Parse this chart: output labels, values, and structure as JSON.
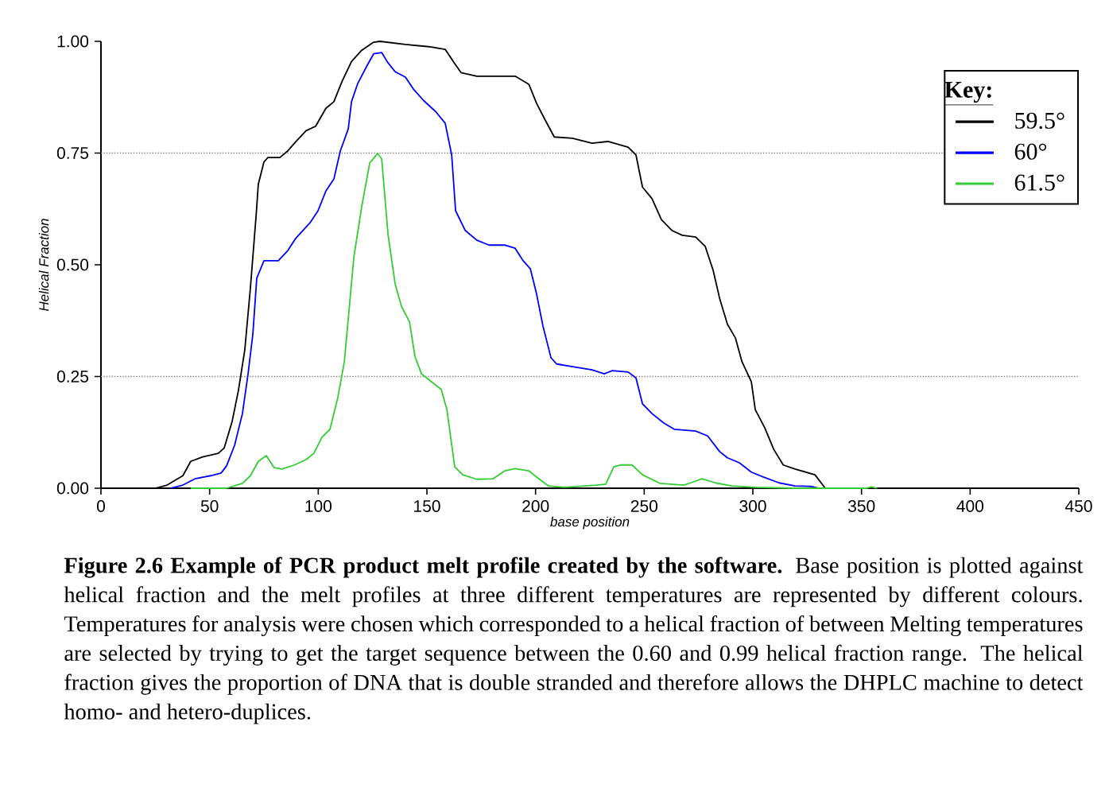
{
  "chart_data": {
    "type": "line",
    "xlabel": "base position",
    "ylabel": "Helical Fraction",
    "legend_title": "Key:",
    "xlim": [
      0,
      450
    ],
    "xticks": [
      0,
      50,
      100,
      150,
      200,
      250,
      300,
      350,
      400,
      450
    ],
    "ylim": [
      0,
      1
    ],
    "yticks": [
      {
        "value": 0,
        "label": "0.00"
      },
      {
        "value": 0.25,
        "label": "0.25"
      },
      {
        "value": 0.5,
        "label": "0.50"
      },
      {
        "value": 0.75,
        "label": "0.75"
      },
      {
        "value": 1,
        "label": "1.00"
      }
    ],
    "grid": false,
    "legend": "top right",
    "marker": "none",
    "line_style": "solid",
    "ref_lines": [
      {
        "axis": "y",
        "value": 0.25,
        "color": "#808080",
        "line_style": "dotted"
      },
      {
        "axis": "y",
        "value": 0.75,
        "color": "#808080",
        "line_style": "dotted"
      }
    ],
    "series": [
      {
        "name": "59.5°",
        "color": "#000000",
        "x": [
          25,
          30.4,
          37.7,
          41.3,
          46.8,
          54,
          56.7,
          60.4,
          63.3,
          66.2,
          68.8,
          71.4,
          72.4,
          75,
          76.8,
          82.3,
          86,
          89.6,
          94.4,
          98.8,
          103.5,
          107.2,
          110.9,
          115.3,
          120,
          125.5,
          128.4,
          140,
          151,
          158.4,
          162.8,
          165.7,
          173,
          190.6,
          196.9,
          200.5,
          204.2,
          208.6,
          217,
          226,
          233.4,
          242.6,
          246.2,
          249.2,
          253.6,
          257.9,
          262.7,
          267.5,
          273.7,
          278.1,
          281.7,
          284.7,
          288.3,
          292,
          295,
          299.3,
          301.1,
          305.5,
          309.6,
          314,
          319.4,
          328.6,
          333.3
        ],
        "values": [
          0,
          0.007,
          0.028,
          0.06,
          0.07,
          0.078,
          0.09,
          0.15,
          0.22,
          0.31,
          0.45,
          0.61,
          0.68,
          0.73,
          0.74,
          0.74,
          0.755,
          0.775,
          0.8,
          0.81,
          0.85,
          0.865,
          0.91,
          0.955,
          0.98,
          0.998,
          1.0,
          0.993,
          0.988,
          0.982,
          0.95,
          0.93,
          0.922,
          0.922,
          0.904,
          0.861,
          0.826,
          0.786,
          0.783,
          0.772,
          0.776,
          0.763,
          0.746,
          0.674,
          0.648,
          0.601,
          0.577,
          0.566,
          0.562,
          0.541,
          0.488,
          0.425,
          0.367,
          0.336,
          0.283,
          0.238,
          0.176,
          0.135,
          0.087,
          0.052,
          0.043,
          0.03,
          0
        ]
      },
      {
        "name": "60°",
        "color": "#0000ff",
        "x": [
          32.2,
          37.7,
          43.2,
          50.5,
          55.3,
          57.8,
          61.5,
          65.1,
          67.7,
          69.9,
          71.7,
          75,
          81.6,
          86,
          89.6,
          96.2,
          99.9,
          103.5,
          107.2,
          110.1,
          113.8,
          115.3,
          118.2,
          122.6,
          125.5,
          129.2,
          131.8,
          135.4,
          140.1,
          143.8,
          148.6,
          154,
          158.4,
          161.4,
          163.2,
          167.6,
          173,
          178.6,
          186,
          190.6,
          194.3,
          197.6,
          200.5,
          203.4,
          207.1,
          209.7,
          217,
          226,
          231.6,
          235.3,
          242.6,
          246.2,
          249.2,
          253.6,
          259,
          263.8,
          273.7,
          279.2,
          284.7,
          288.3,
          293.8,
          299.3,
          304.8,
          312.1,
          319.4,
          326.7,
          330
        ],
        "values": [
          0,
          0.007,
          0.021,
          0.028,
          0.034,
          0.05,
          0.096,
          0.167,
          0.256,
          0.345,
          0.47,
          0.509,
          0.509,
          0.532,
          0.559,
          0.594,
          0.621,
          0.665,
          0.692,
          0.754,
          0.804,
          0.865,
          0.906,
          0.947,
          0.972,
          0.975,
          0.954,
          0.932,
          0.92,
          0.893,
          0.867,
          0.843,
          0.817,
          0.746,
          0.621,
          0.577,
          0.555,
          0.544,
          0.544,
          0.537,
          0.509,
          0.491,
          0.434,
          0.363,
          0.292,
          0.278,
          0.272,
          0.265,
          0.256,
          0.263,
          0.26,
          0.247,
          0.189,
          0.167,
          0.146,
          0.132,
          0.128,
          0.117,
          0.082,
          0.068,
          0.057,
          0.036,
          0.025,
          0.012,
          0.005,
          0.004,
          0
        ]
      },
      {
        "name": "61.5°",
        "color": "#33cc33",
        "x": [
          41.3,
          57.8,
          65.1,
          68.8,
          72.4,
          76.1,
          79.7,
          83.4,
          89,
          94.4,
          98,
          101.7,
          105.4,
          109,
          112,
          114.5,
          116.4,
          120,
          123.7,
          127.3,
          129.2,
          132.1,
          135.4,
          138.3,
          142,
          144.5,
          147.5,
          151.1,
          156.6,
          159.2,
          162.8,
          166.5,
          173,
          180.4,
          185.9,
          190.6,
          196.9,
          200.5,
          206,
          213.3,
          228,
          232.3,
          236,
          239,
          244.4,
          249.2,
          257.2,
          268.2,
          273.7,
          276.6,
          282.8,
          290.2,
          301.1,
          319.4,
          352.4,
          354.5,
          357
        ],
        "values": [
          0,
          0,
          0.011,
          0.028,
          0.06,
          0.073,
          0.046,
          0.043,
          0.052,
          0.064,
          0.078,
          0.114,
          0.132,
          0.203,
          0.283,
          0.416,
          0.518,
          0.63,
          0.728,
          0.749,
          0.737,
          0.568,
          0.457,
          0.407,
          0.372,
          0.295,
          0.256,
          0.242,
          0.221,
          0.176,
          0.048,
          0.03,
          0.02,
          0.021,
          0.039,
          0.044,
          0.039,
          0.025,
          0.005,
          0.002,
          0.007,
          0.009,
          0.048,
          0.052,
          0.052,
          0.03,
          0.011,
          0.007,
          0.016,
          0.021,
          0.012,
          0.005,
          0.002,
          0,
          0,
          0.003,
          0
        ]
      }
    ],
    "annotations": [
      "**Figure 2.6 Example of PCR product melt profile created by the software.** Base position is plotted against helical fraction and the melt profiles at three different temperatures are represented by different colours. Temperatures for analysis were chosen which corresponded to a helical fraction of between Melting temperatures are selected by trying to get the target sequence between the 0.60 and 0.99 helical fraction range. The helical fraction gives the proportion of DNA that is double stranded and therefore allows the DHPLC machine to detect homo- and hetero-duplices."
    ]
  }
}
